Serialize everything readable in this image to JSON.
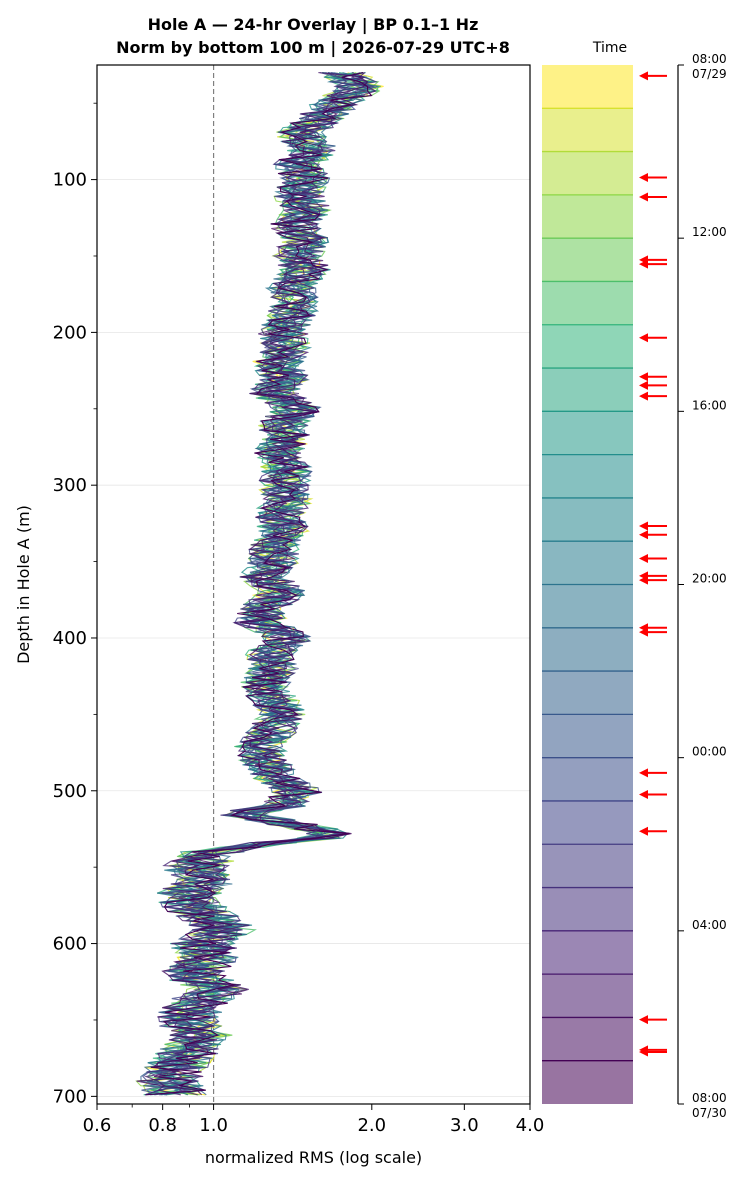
{
  "chart_data": {
    "type": "line",
    "title": [
      "Hole A — 24-hr Overlay  |  BP 0.1–1 Hz",
      "Norm by bottom 100 m  |  2026-07-29 UTC+8"
    ],
    "xlabel": "normalized RMS  (log scale)",
    "ylabel": "Depth in Hole A (m)",
    "xscale": "log",
    "xlim": [
      0.6,
      4.0
    ],
    "ylim": [
      705,
      25
    ],
    "y_inverted": true,
    "x_ticks": [
      0.6,
      0.8,
      1.0,
      2.0,
      3.0,
      4.0
    ],
    "x_tick_labels": [
      "0.6",
      "0.8",
      "1.0",
      "2.0",
      "3.0",
      "4.0"
    ],
    "y_ticks": [
      100,
      200,
      300,
      400,
      500,
      600,
      700
    ],
    "y_tick_labels": [
      "100",
      "200",
      "300",
      "400",
      "500",
      "600",
      "700"
    ],
    "grid": "horizontal at major y ticks",
    "reference_line": {
      "x": 1.0,
      "style": "dashed",
      "color": "#808080"
    },
    "depth_range": [
      30,
      700
    ],
    "mean_profile": [
      [
        30,
        1.75
      ],
      [
        40,
        1.9
      ],
      [
        50,
        1.7
      ],
      [
        60,
        1.6
      ],
      [
        70,
        1.45
      ],
      [
        80,
        1.55
      ],
      [
        90,
        1.45
      ],
      [
        100,
        1.5
      ],
      [
        110,
        1.45
      ],
      [
        120,
        1.5
      ],
      [
        130,
        1.42
      ],
      [
        140,
        1.5
      ],
      [
        150,
        1.45
      ],
      [
        160,
        1.5
      ],
      [
        170,
        1.4
      ],
      [
        180,
        1.45
      ],
      [
        190,
        1.4
      ],
      [
        200,
        1.35
      ],
      [
        210,
        1.38
      ],
      [
        220,
        1.32
      ],
      [
        230,
        1.36
      ],
      [
        240,
        1.3
      ],
      [
        250,
        1.45
      ],
      [
        260,
        1.35
      ],
      [
        270,
        1.38
      ],
      [
        280,
        1.32
      ],
      [
        290,
        1.38
      ],
      [
        300,
        1.36
      ],
      [
        310,
        1.38
      ],
      [
        320,
        1.33
      ],
      [
        330,
        1.36
      ],
      [
        340,
        1.3
      ],
      [
        350,
        1.3
      ],
      [
        360,
        1.25
      ],
      [
        370,
        1.35
      ],
      [
        380,
        1.25
      ],
      [
        390,
        1.22
      ],
      [
        400,
        1.4
      ],
      [
        410,
        1.28
      ],
      [
        420,
        1.3
      ],
      [
        430,
        1.25
      ],
      [
        440,
        1.3
      ],
      [
        450,
        1.35
      ],
      [
        460,
        1.3
      ],
      [
        470,
        1.22
      ],
      [
        480,
        1.25
      ],
      [
        490,
        1.3
      ],
      [
        500,
        1.45
      ],
      [
        510,
        1.35
      ],
      [
        515,
        1.1
      ],
      [
        525,
        1.55
      ],
      [
        530,
        1.7
      ],
      [
        535,
        1.2
      ],
      [
        540,
        1.0
      ],
      [
        550,
        0.92
      ],
      [
        560,
        0.95
      ],
      [
        570,
        0.88
      ],
      [
        580,
        0.95
      ],
      [
        590,
        1.05
      ],
      [
        600,
        0.95
      ],
      [
        610,
        0.98
      ],
      [
        620,
        0.9
      ],
      [
        630,
        1.02
      ],
      [
        640,
        0.92
      ],
      [
        650,
        0.88
      ],
      [
        660,
        0.95
      ],
      [
        670,
        0.9
      ],
      [
        680,
        0.85
      ],
      [
        690,
        0.82
      ],
      [
        700,
        0.85
      ]
    ],
    "series_count": 24,
    "series_colormap": "viridis",
    "series_color_order": "oldest yellow to newest dark purple",
    "colorbar": {
      "label": "Time",
      "n_bins": 24,
      "start": "2026-07-29 08:00",
      "end": "2026-07-30 08:00",
      "ticks": [
        {
          "hour": 0,
          "label": [
            "08:00",
            "07/29"
          ]
        },
        {
          "hour": 4,
          "label": [
            "12:00"
          ]
        },
        {
          "hour": 8,
          "label": [
            "16:00"
          ]
        },
        {
          "hour": 12,
          "label": [
            "20:00"
          ]
        },
        {
          "hour": 16,
          "label": [
            "00:00"
          ]
        },
        {
          "hour": 20,
          "label": [
            "04:00"
          ]
        },
        {
          "hour": 24,
          "label": [
            "08:00",
            "07/30"
          ]
        }
      ],
      "event_hours": [
        0.25,
        2.6,
        3.05,
        4.5,
        4.6,
        6.3,
        7.2,
        7.4,
        7.65,
        10.65,
        10.85,
        11.4,
        11.8,
        11.9,
        13.0,
        13.1,
        16.35,
        16.85,
        17.7,
        22.05,
        22.75,
        22.8
      ],
      "event_marker": "left-pointing arrow",
      "event_color": "#ff0000"
    }
  }
}
